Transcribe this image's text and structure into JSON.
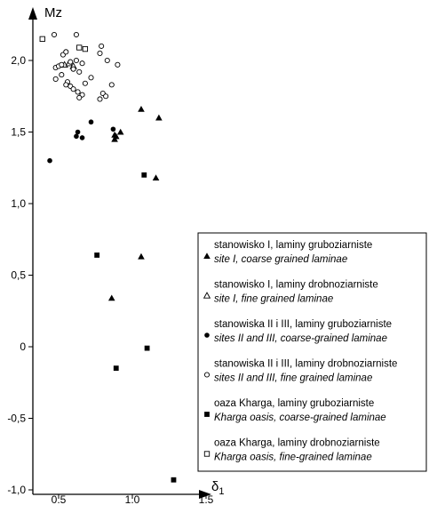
{
  "chart_data": {
    "type": "scatter",
    "xlabel": "δ",
    "xlabel_sub": "1",
    "ylabel": "Mz",
    "xlim": [
      0.38,
      1.52
    ],
    "ylim": [
      -1.0,
      2.27
    ],
    "x_ticks": [
      0.5,
      1.0,
      1.5
    ],
    "x_tick_labels": [
      "0.5",
      "1.0",
      "1.5"
    ],
    "y_ticks": [
      -1.0,
      -0.5,
      0,
      0.5,
      1.0,
      1.5,
      2.0
    ],
    "y_tick_labels": [
      "-1,0",
      "-0,5",
      "0",
      "0,5",
      "1,0",
      "1,5",
      "2,0"
    ],
    "grid": false,
    "legend_position": "right",
    "series": [
      {
        "name": "stanowisko I, laminy gruboziarniste",
        "name_en": "site I, coarse grained laminae",
        "marker": "filled-triangle",
        "points": [
          [
            1.06,
            1.66
          ],
          [
            1.18,
            1.6
          ],
          [
            0.88,
            1.48
          ],
          [
            0.92,
            1.5
          ],
          [
            0.88,
            1.45
          ],
          [
            0.89,
            1.47
          ],
          [
            1.16,
            1.18
          ],
          [
            1.06,
            0.63
          ],
          [
            0.86,
            0.34
          ]
        ]
      },
      {
        "name": "stanowisko I, laminy drobnoziarniste",
        "name_en": "site I, fine grained laminae",
        "marker": "open-triangle",
        "points": [
          [
            0.54,
            1.97
          ],
          [
            0.57,
            1.98
          ],
          [
            0.6,
            1.96
          ]
        ]
      },
      {
        "name": "stanowiska II i III, laminy gruboziarniste",
        "name_en": "sites II and III, coarse-grained laminae",
        "marker": "filled-circle",
        "points": [
          [
            0.44,
            1.3
          ],
          [
            0.62,
            1.47
          ],
          [
            0.66,
            1.46
          ],
          [
            0.63,
            1.5
          ],
          [
            0.72,
            1.57
          ],
          [
            0.87,
            1.52
          ]
        ]
      },
      {
        "name": "stanowiska II i III, laminy drobnoziarniste",
        "name_en": "sites II and III, fine grained laminae",
        "marker": "open-circle",
        "points": [
          [
            0.47,
            2.18
          ],
          [
            0.53,
            2.04
          ],
          [
            0.55,
            2.06
          ],
          [
            0.62,
            2.18
          ],
          [
            0.48,
            1.95
          ],
          [
            0.5,
            1.96
          ],
          [
            0.52,
            1.97
          ],
          [
            0.58,
            1.99
          ],
          [
            0.62,
            2.0
          ],
          [
            0.66,
            1.98
          ],
          [
            0.6,
            1.94
          ],
          [
            0.64,
            1.92
          ],
          [
            0.52,
            1.9
          ],
          [
            0.48,
            1.87
          ],
          [
            0.56,
            1.85
          ],
          [
            0.58,
            1.82
          ],
          [
            0.6,
            1.8
          ],
          [
            0.63,
            1.78
          ],
          [
            0.66,
            1.76
          ],
          [
            0.64,
            1.74
          ],
          [
            0.68,
            1.84
          ],
          [
            0.72,
            1.88
          ],
          [
            0.79,
            2.1
          ],
          [
            0.78,
            2.05
          ],
          [
            0.83,
            2.0
          ],
          [
            0.9,
            1.97
          ],
          [
            0.86,
            1.83
          ],
          [
            0.8,
            1.77
          ],
          [
            0.82,
            1.75
          ],
          [
            0.78,
            1.73
          ],
          [
            0.55,
            1.83
          ]
        ]
      },
      {
        "name": "oaza Kharga, laminy gruboziarniste",
        "name_en": "Kharga oasis, coarse-grained laminae",
        "marker": "filled-square",
        "points": [
          [
            1.08,
            1.2
          ],
          [
            0.76,
            0.64
          ],
          [
            1.1,
            -0.01
          ],
          [
            0.89,
            -0.15
          ],
          [
            1.28,
            -0.93
          ]
        ]
      },
      {
        "name": "oaza Kharga, laminy drobnoziarniste",
        "name_en": "Kharga oasis, fine-grained laminae",
        "marker": "open-square",
        "points": [
          [
            0.39,
            2.15
          ],
          [
            0.64,
            2.09
          ],
          [
            0.68,
            2.08
          ]
        ]
      }
    ]
  }
}
